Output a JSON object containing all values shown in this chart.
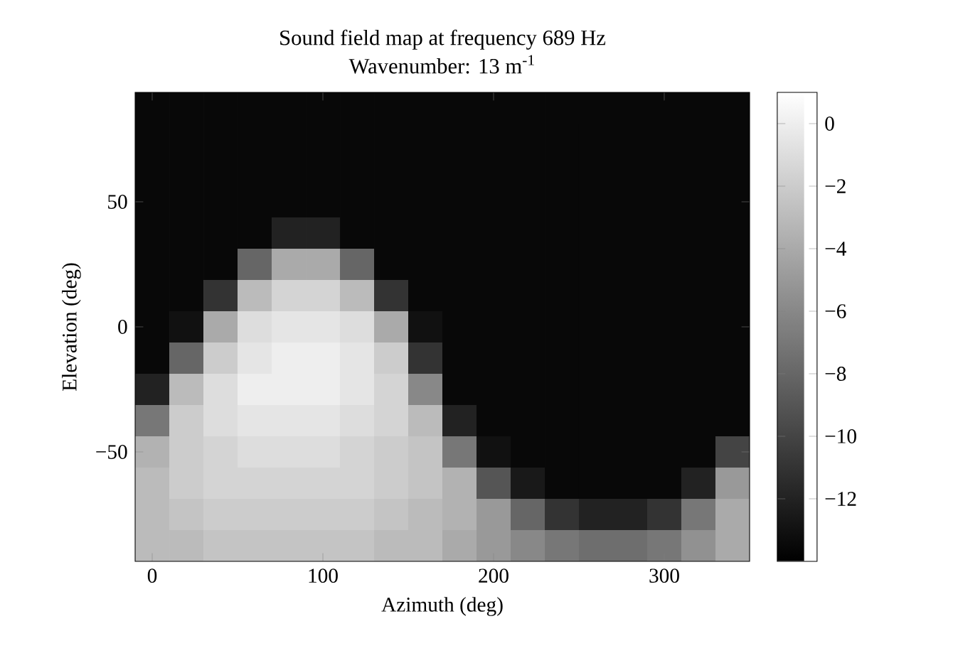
{
  "chart_data": {
    "type": "heatmap",
    "title": "Sound field map at frequency 689 Hz",
    "subtitle": "Wavenumber: 13 m$^{-1}$",
    "xlabel": "Azimuth (deg)",
    "ylabel": "Elevation (deg)",
    "categories": [
      "0",
      null,
      null,
      null,
      null,
      "100",
      null,
      null,
      null,
      null,
      "200",
      null,
      null,
      null,
      null,
      "300",
      null,
      null
    ],
    "y_categories": [
      null,
      null,
      null,
      "50",
      null,
      null,
      null,
      "0",
      null,
      null,
      null,
      "−50",
      null,
      null,
      null
    ],
    "clim": [
      -14,
      1
    ],
    "cticks": [
      {
        "value": -12,
        "label": "−12"
      },
      {
        "value": -10,
        "label": "−10"
      },
      {
        "value": -8,
        "label": "−8"
      },
      {
        "value": -6,
        "label": "−6"
      },
      {
        "value": -4,
        "label": "−4"
      },
      {
        "value": -2,
        "label": "−2"
      },
      0
    ],
    "cells": [
      [
        -13.5,
        -13.5,
        -13.5,
        -13.5,
        -13.5,
        -13.5,
        -13.5,
        -13.5,
        -13.5,
        -13.5,
        -13.5,
        -13.5,
        -13.5,
        -13.5,
        -13.5,
        -13.5,
        -13.5,
        -13.5
      ],
      [
        -13.5,
        -13.5,
        -13.5,
        -13.5,
        -13.5,
        -13.5,
        -13.5,
        -13.5,
        -13.5,
        -13.5,
        -13.5,
        -13.5,
        -13.5,
        -13.5,
        -13.5,
        -13.5,
        -13.5,
        -13.5
      ],
      [
        -13.5,
        -13.5,
        -13.5,
        -13.5,
        -13.5,
        -13.5,
        -13.5,
        -13.5,
        -13.5,
        -13.5,
        -13.5,
        -13.5,
        -13.5,
        -13.5,
        -13.5,
        -13.5,
        -13.5,
        -13.5
      ],
      [
        -13.5,
        -13.5,
        -13.5,
        -13.5,
        -13.5,
        -13.5,
        -13.5,
        -13.5,
        -13.5,
        -13.5,
        -13.5,
        -13.5,
        -13.5,
        -13.5,
        -13.5,
        -13.5,
        -13.5,
        -13.5
      ],
      [
        -13.5,
        -13.5,
        -13.5,
        -13.5,
        -12,
        -12,
        -13.5,
        -13.5,
        -13.5,
        -13.5,
        -13.5,
        -13.5,
        -13.5,
        -13.5,
        -13.5,
        -13.5,
        -13.5,
        -13.5
      ],
      [
        -13.5,
        -13.5,
        -13.5,
        -8,
        -4,
        -4,
        -8,
        -13.5,
        -13.5,
        -13.5,
        -13.5,
        -13.5,
        -13.5,
        -13.5,
        -13.5,
        -13.5,
        -13.5,
        -13.5
      ],
      [
        -13.5,
        -13.5,
        -11,
        -3,
        -1.5,
        -1.5,
        -3,
        -11,
        -13.5,
        -13.5,
        -13.5,
        -13.5,
        -13.5,
        -13.5,
        -13.5,
        -13.5,
        -13.5,
        -13.5
      ],
      [
        -13.5,
        -13,
        -4,
        -1,
        -0.5,
        -0.5,
        -1,
        -4,
        -13,
        -13.5,
        -13.5,
        -13.5,
        -13.5,
        -13.5,
        -13.5,
        -13.5,
        -13.5,
        -13.5
      ],
      [
        -13.5,
        -8,
        -2,
        -0.5,
        0,
        0,
        -0.5,
        -2,
        -11,
        -13.5,
        -13.5,
        -13.5,
        -13.5,
        -13.5,
        -13.5,
        -13.5,
        -13.5,
        -13.5
      ],
      [
        -12,
        -3,
        -1,
        0,
        0,
        0,
        -0.5,
        -1.5,
        -6,
        -13.5,
        -13.5,
        -13.5,
        -13.5,
        -13.5,
        -13.5,
        -13.5,
        -13.5,
        -13.5
      ],
      [
        -7,
        -2,
        -1,
        -0.5,
        -0.5,
        -0.5,
        -1,
        -1.5,
        -3,
        -12,
        -13.5,
        -13.5,
        -13.5,
        -13.5,
        -13.5,
        -13.5,
        -13.5,
        -13.5
      ],
      [
        -3.5,
        -2,
        -1.5,
        -1,
        -1,
        -1,
        -1.5,
        -2,
        -2.5,
        -7,
        -13,
        -13.5,
        -13.5,
        -13.5,
        -13.5,
        -13.5,
        -13.5,
        -10
      ],
      [
        -3,
        -2,
        -1.5,
        -1.5,
        -1.5,
        -1.5,
        -1.5,
        -2,
        -2.5,
        -3.5,
        -9,
        -12.5,
        -13.5,
        -13.5,
        -13.5,
        -13.5,
        -12,
        -5
      ],
      [
        -3,
        -2.5,
        -2,
        -2,
        -2,
        -2,
        -2,
        -2.5,
        -3,
        -3.5,
        -5,
        -8,
        -11,
        -12,
        -12,
        -11,
        -7,
        -4
      ],
      [
        -3,
        -3,
        -2.5,
        -2.5,
        -2.5,
        -2.5,
        -2.5,
        -3,
        -3,
        -4,
        -5,
        -6,
        -7,
        -7.5,
        -7.5,
        -7,
        -5.5,
        -4
      ]
    ]
  }
}
